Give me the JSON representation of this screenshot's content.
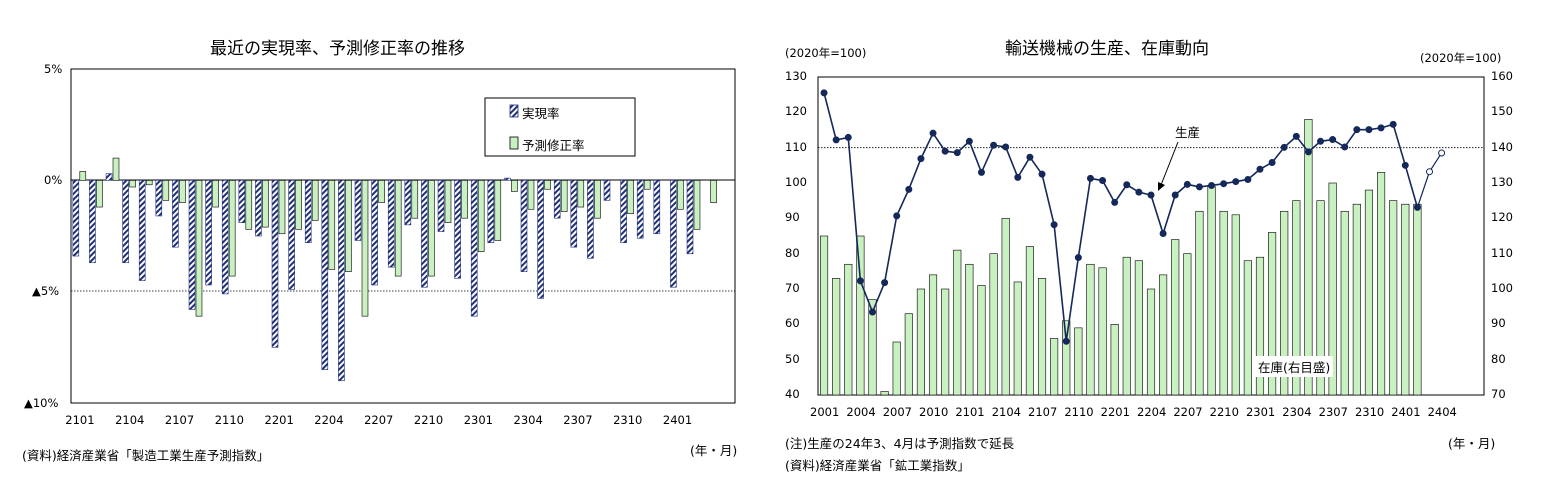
{
  "left_chart": {
    "title": "最近の実現率、予測修正率の推移",
    "y_tick_labels": [
      "5%",
      "0%",
      "▲5%",
      "▲10%"
    ],
    "x_tick_labels": [
      "2101",
      "2104",
      "2107",
      "2110",
      "2201",
      "2204",
      "2207",
      "2210",
      "2301",
      "2304",
      "2307",
      "2310",
      "2401"
    ],
    "unit_label": "(年・月)",
    "source": "(資料)経済産業省「製造工業生産予測指数」",
    "legend": [
      "実現率",
      "予測修正率"
    ]
  },
  "right_chart": {
    "title": "輸送機械の生産、在庫動向",
    "left_unit": "(2020年=100)",
    "right_unit": "(2020年=100)",
    "y_left_ticks": [
      "130",
      "120",
      "110",
      "100",
      "90",
      "80",
      "70",
      "60",
      "50",
      "40"
    ],
    "y_right_ticks": [
      "160",
      "150",
      "140",
      "130",
      "120",
      "110",
      "100",
      "90",
      "80",
      "70"
    ],
    "x_tick_labels": [
      "2001",
      "2004",
      "2007",
      "2010",
      "2101",
      "2104",
      "2107",
      "2110",
      "2201",
      "2204",
      "2207",
      "2210",
      "2301",
      "2304",
      "2307",
      "2310",
      "2401",
      "2404"
    ],
    "unit_label": "(年・月)",
    "note": "(注)生産の24年3、4月は予測指数で延長",
    "source": "(資料)経済産業省「鉱工業指数」",
    "label_production": "生産",
    "label_inventory": "在庫(右目盛)"
  },
  "chart_data": [
    {
      "type": "bar",
      "title": "最近の実現率、予測修正率の推移",
      "ylim": [
        -10,
        5
      ],
      "grid": "dotted at -5",
      "legend_position": "top-right",
      "x": [
        "2101",
        "2102",
        "2103",
        "2104",
        "2105",
        "2106",
        "2107",
        "2108",
        "2109",
        "2110",
        "2111",
        "2112",
        "2201",
        "2202",
        "2203",
        "2204",
        "2205",
        "2206",
        "2207",
        "2208",
        "2209",
        "2210",
        "2211",
        "2212",
        "2301",
        "2302",
        "2303",
        "2304",
        "2305",
        "2306",
        "2307",
        "2308",
        "2309",
        "2310",
        "2311",
        "2312",
        "2401",
        "2402",
        "2403"
      ],
      "series": [
        {
          "name": "実現率",
          "color": "#1f2f7a",
          "values": [
            -3.4,
            -3.7,
            0.3,
            -3.7,
            -4.5,
            -1.6,
            -3.0,
            -5.8,
            -4.7,
            -5.1,
            -1.9,
            -2.5,
            -7.5,
            -4.9,
            -2.8,
            -8.5,
            -9.0,
            -2.7,
            -4.7,
            -3.9,
            -2.0,
            -4.8,
            -2.3,
            -4.4,
            -6.1,
            -2.8,
            0.1,
            -4.1,
            -5.3,
            -1.7,
            -3.0,
            -3.5,
            -0.9,
            -2.8,
            -2.6,
            -2.4,
            -4.8,
            -3.3,
            0
          ]
        },
        {
          "name": "予測修正率",
          "color": "#c9f0c0",
          "values": [
            0.4,
            -1.2,
            1.0,
            -0.3,
            -0.2,
            -0.9,
            -1.0,
            -6.1,
            -1.2,
            -4.3,
            -2.2,
            -2.1,
            -2.4,
            -2.2,
            -1.8,
            -4.0,
            -4.1,
            -6.1,
            -1.0,
            -4.3,
            -1.7,
            -4.3,
            -1.9,
            -1.7,
            -3.2,
            -2.7,
            -0.5,
            -1.3,
            -0.4,
            -1.4,
            -1.2,
            -1.7,
            0,
            -1.5,
            -0.4,
            0,
            -1.3,
            -2.2,
            -1.0
          ]
        }
      ]
    },
    {
      "type": "bar+line",
      "title": "輸送機械の生産、在庫動向",
      "ylim_left": [
        40,
        130
      ],
      "ylim_right": [
        70,
        160
      ],
      "grid": "dotted at 110",
      "x": [
        "2001",
        "2002",
        "2003",
        "2004",
        "2005",
        "2006",
        "2007",
        "2008",
        "2009",
        "2010",
        "2011",
        "2012",
        "2101",
        "2102",
        "2103",
        "2104",
        "2105",
        "2106",
        "2107",
        "2108",
        "2109",
        "2110",
        "2111",
        "2112",
        "2201",
        "2202",
        "2203",
        "2204",
        "2205",
        "2206",
        "2207",
        "2208",
        "2209",
        "2210",
        "2211",
        "2212",
        "2301",
        "2302",
        "2303",
        "2304",
        "2305",
        "2306",
        "2307",
        "2308",
        "2309",
        "2310",
        "2311",
        "2312",
        "2401",
        "2402",
        "2403",
        "2404"
      ],
      "series": [
        {
          "name": "在庫(右目盛)",
          "axis": "right",
          "kind": "bar",
          "color": "#c9f0c0",
          "values": [
            115,
            103,
            107,
            115,
            97,
            71,
            85,
            93,
            100,
            104,
            100,
            111,
            107,
            101,
            110,
            120,
            102,
            112,
            103,
            86,
            91,
            89,
            107,
            106,
            90,
            109,
            108,
            100,
            104,
            114,
            110,
            122,
            129,
            122,
            121,
            108,
            109,
            116,
            122,
            125,
            148,
            125,
            130,
            122,
            124,
            128,
            133,
            125,
            124,
            124,
            null,
            null
          ]
        },
        {
          "name": "生産",
          "axis": "left",
          "kind": "line",
          "color": "#14285a",
          "values": [
            125.5,
            112.2,
            112.9,
            72.3,
            63.5,
            71.8,
            90.7,
            98.2,
            106.9,
            114.1,
            109.0,
            108.6,
            111.8,
            103.0,
            110.7,
            110.2,
            101.6,
            107.3,
            102.5,
            88.2,
            55.2,
            78.9,
            101.3,
            100.7,
            94.5,
            99.5,
            97.4,
            96.6,
            85.7,
            96.6,
            99.6,
            98.9,
            99.3,
            99.8,
            100.4,
            101.0,
            103.9,
            105.8,
            110.1,
            113.2,
            108.8,
            111.8,
            112.3,
            110.2,
            115.1,
            115.1,
            115.6,
            116.6,
            105.0,
            93.1,
            103.2,
            108.5
          ],
          "forecast_points": [
            "2403",
            "2404"
          ]
        }
      ]
    }
  ]
}
